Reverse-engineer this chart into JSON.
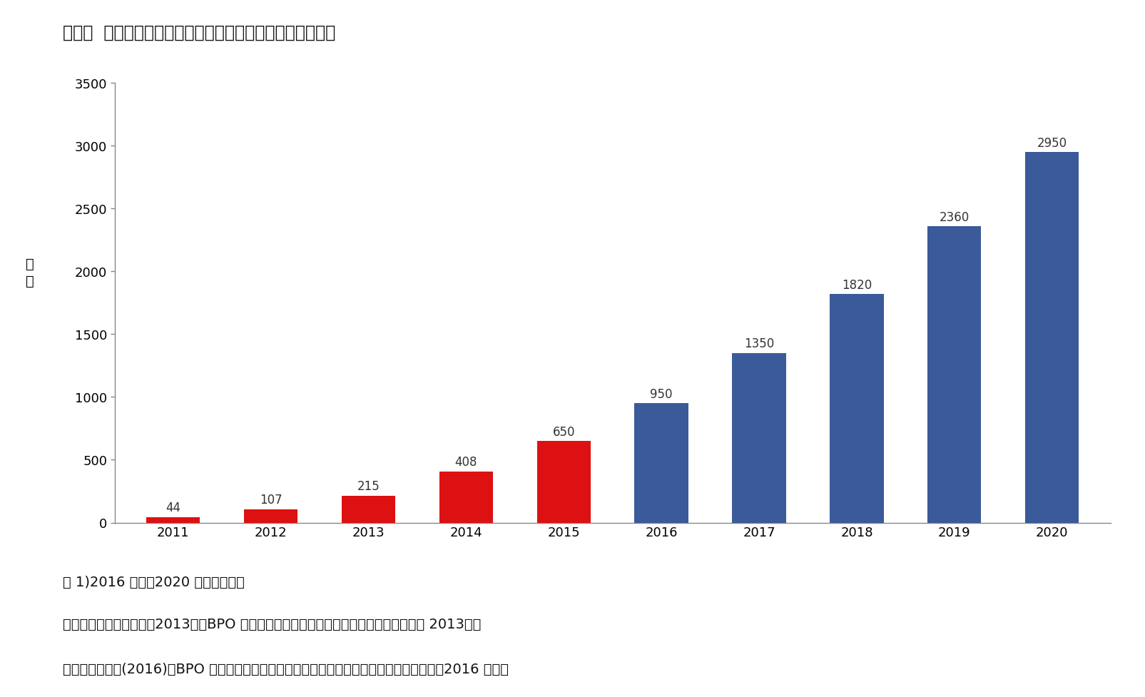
{
  "title": "図表４  日本におけるクラウドソーシングの市場規模の予測",
  "years": [
    "2011",
    "2012",
    "2013",
    "2014",
    "2015",
    "2016",
    "2017",
    "2018",
    "2019",
    "2020"
  ],
  "values": [
    44,
    107,
    215,
    408,
    650,
    950,
    1350,
    1820,
    2360,
    2950
  ],
  "bar_colors": [
    "#dd1111",
    "#dd1111",
    "#dd1111",
    "#dd1111",
    "#dd1111",
    "#3a5a9a",
    "#3a5a9a",
    "#3a5a9a",
    "#3a5a9a",
    "#3a5a9a"
  ],
  "ylabel_line1": "億",
  "ylabel_line2": "円",
  "ylim": [
    0,
    3500
  ],
  "yticks": [
    0,
    500,
    1000,
    1500,
    2000,
    2500,
    3000,
    3500
  ],
  "note_line1": "注 1)2016 年度～2020 年度は見込み",
  "note_line2": "出所）矢野経済研究所（2013）「BPO 市場・クラウドソーシング市場に関する調査結果 2013」、",
  "note_line3": "矢野経済研究所(2016)「BPO 市場・クラウドソーシングサービス市場に関する調査を実施（2016 年）」",
  "background_color": "#ffffff",
  "label_fontsize": 12,
  "title_fontsize": 17,
  "note_fontsize": 14,
  "axis_fontsize": 13,
  "ylabel_fontsize": 14
}
